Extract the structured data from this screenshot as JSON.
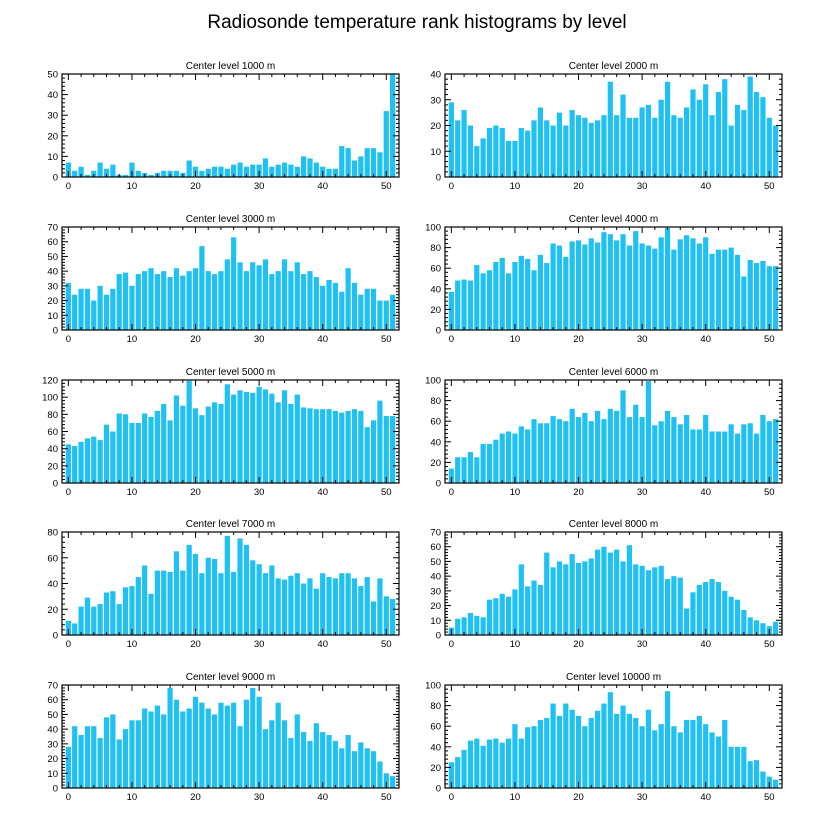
{
  "title": "Radiosonde temperature rank histograms by level",
  "colors": {
    "bar": "#1fc0f2",
    "axis": "#000000",
    "background": "#ffffff"
  },
  "chart_data": [
    {
      "type": "bar",
      "title": "Center level 1000 m",
      "xlim": [
        -1,
        52
      ],
      "ylim": [
        0,
        50
      ],
      "xticks": [
        0,
        10,
        20,
        30,
        40,
        50
      ],
      "yticks": [
        0,
        10,
        20,
        30,
        40,
        50
      ],
      "x_start": 0,
      "values": [
        7,
        3,
        5,
        1,
        3,
        7,
        4,
        6,
        1,
        1,
        7,
        3,
        2,
        1,
        2,
        3,
        3,
        3,
        2,
        8,
        5,
        3,
        4,
        5,
        5,
        4,
        6,
        7,
        5,
        6,
        6,
        9,
        5,
        6,
        7,
        6,
        5,
        10,
        9,
        7,
        5,
        4,
        4,
        15,
        14,
        8,
        10,
        14,
        14,
        12,
        32,
        50
      ]
    },
    {
      "type": "bar",
      "title": "Center level 2000 m",
      "xlim": [
        -1,
        52
      ],
      "ylim": [
        0,
        40
      ],
      "xticks": [
        0,
        10,
        20,
        30,
        40,
        50
      ],
      "yticks": [
        0,
        10,
        20,
        30,
        40
      ],
      "x_start": 0,
      "values": [
        29,
        22,
        26,
        20,
        12,
        15,
        19,
        20,
        19,
        14,
        14,
        19,
        18,
        22,
        27,
        22,
        20,
        25,
        20,
        26,
        24,
        23,
        21,
        22,
        24,
        37,
        24,
        32,
        23,
        23,
        27,
        28,
        23,
        30,
        37,
        24,
        23,
        27,
        34,
        30,
        36,
        24,
        33,
        38,
        20,
        28,
        26,
        39,
        33,
        31,
        23,
        20
      ]
    },
    {
      "type": "bar",
      "title": "Center level 3000 m",
      "xlim": [
        -1,
        52
      ],
      "ylim": [
        0,
        70
      ],
      "xticks": [
        0,
        10,
        20,
        30,
        40,
        50
      ],
      "yticks": [
        0,
        10,
        20,
        30,
        40,
        50,
        60,
        70
      ],
      "x_start": 0,
      "values": [
        32,
        24,
        28,
        28,
        20,
        30,
        24,
        28,
        38,
        39,
        30,
        38,
        40,
        42,
        38,
        40,
        36,
        42,
        37,
        40,
        42,
        57,
        40,
        38,
        40,
        48,
        63,
        46,
        40,
        46,
        44,
        48,
        38,
        40,
        48,
        40,
        46,
        38,
        40,
        36,
        30,
        34,
        32,
        26,
        42,
        32,
        24,
        28,
        28,
        20,
        20,
        24
      ]
    },
    {
      "type": "bar",
      "title": "Center level 4000 m",
      "xlim": [
        -1,
        52
      ],
      "ylim": [
        0,
        100
      ],
      "xticks": [
        0,
        10,
        20,
        30,
        40,
        50
      ],
      "yticks": [
        0,
        20,
        40,
        60,
        80,
        100
      ],
      "x_start": 0,
      "values": [
        37,
        48,
        49,
        48,
        63,
        55,
        58,
        66,
        70,
        55,
        66,
        72,
        69,
        58,
        73,
        65,
        84,
        82,
        71,
        86,
        87,
        83,
        89,
        85,
        95,
        93,
        87,
        93,
        82,
        96,
        84,
        82,
        79,
        90,
        99,
        78,
        88,
        92,
        89,
        84,
        90,
        74,
        78,
        78,
        80,
        73,
        52,
        68,
        65,
        67,
        62,
        62
      ]
    },
    {
      "type": "bar",
      "title": "Center level 5000 m",
      "xlim": [
        -1,
        52
      ],
      "ylim": [
        0,
        120
      ],
      "xticks": [
        0,
        10,
        20,
        30,
        40,
        50
      ],
      "yticks": [
        0,
        20,
        40,
        60,
        80,
        100,
        120
      ],
      "x_start": 0,
      "values": [
        45,
        43,
        48,
        52,
        54,
        50,
        68,
        60,
        81,
        80,
        70,
        70,
        81,
        77,
        84,
        92,
        73,
        102,
        90,
        119,
        87,
        79,
        89,
        94,
        92,
        115,
        103,
        108,
        106,
        105,
        112,
        109,
        104,
        94,
        108,
        92,
        103,
        88,
        87,
        86,
        86,
        86,
        84,
        82,
        84,
        86,
        84,
        65,
        73,
        96,
        78,
        78
      ]
    },
    {
      "type": "bar",
      "title": "Center level 6000 m",
      "xlim": [
        -1,
        52
      ],
      "ylim": [
        0,
        100
      ],
      "xticks": [
        0,
        10,
        20,
        30,
        40,
        50
      ],
      "yticks": [
        0,
        20,
        40,
        60,
        80,
        100
      ],
      "x_start": 0,
      "values": [
        14,
        25,
        25,
        30,
        25,
        38,
        38,
        42,
        48,
        50,
        48,
        55,
        52,
        62,
        58,
        58,
        65,
        62,
        60,
        72,
        64,
        68,
        60,
        70,
        62,
        72,
        70,
        90,
        64,
        76,
        64,
        99,
        56,
        60,
        70,
        64,
        57,
        66,
        52,
        52,
        66,
        50,
        50,
        50,
        57,
        48,
        57,
        58,
        48,
        66,
        60,
        62
      ]
    },
    {
      "type": "bar",
      "title": "Center level 7000 m",
      "xlim": [
        -1,
        52
      ],
      "ylim": [
        0,
        80
      ],
      "xticks": [
        0,
        10,
        20,
        30,
        40,
        50
      ],
      "yticks": [
        0,
        20,
        40,
        60,
        80
      ],
      "x_start": 0,
      "values": [
        11,
        9,
        22,
        29,
        22,
        24,
        33,
        34,
        24,
        37,
        38,
        45,
        54,
        32,
        50,
        50,
        49,
        65,
        50,
        70,
        63,
        48,
        60,
        59,
        48,
        77,
        49,
        75,
        70,
        58,
        55,
        48,
        54,
        44,
        43,
        46,
        48,
        40,
        44,
        36,
        48,
        45,
        44,
        48,
        48,
        44,
        38,
        45,
        26,
        44,
        30,
        28
      ]
    },
    {
      "type": "bar",
      "title": "Center level 8000 m",
      "xlim": [
        -1,
        52
      ],
      "ylim": [
        0,
        70
      ],
      "xticks": [
        0,
        10,
        20,
        30,
        40,
        50
      ],
      "yticks": [
        0,
        10,
        20,
        30,
        40,
        50,
        60,
        70
      ],
      "x_start": 0,
      "values": [
        5,
        11,
        12,
        15,
        13,
        12,
        24,
        25,
        28,
        26,
        31,
        48,
        33,
        37,
        34,
        56,
        46,
        50,
        48,
        55,
        49,
        50,
        52,
        58,
        60,
        56,
        58,
        50,
        61,
        48,
        47,
        44,
        46,
        47,
        38,
        40,
        39,
        18,
        29,
        34,
        36,
        38,
        36,
        30,
        26,
        24,
        17,
        12,
        10,
        8,
        6,
        9
      ]
    },
    {
      "type": "bar",
      "title": "Center level 9000 m",
      "xlim": [
        -1,
        52
      ],
      "ylim": [
        0,
        70
      ],
      "xticks": [
        0,
        10,
        20,
        30,
        40,
        50
      ],
      "yticks": [
        0,
        10,
        20,
        30,
        40,
        50,
        60,
        70
      ],
      "x_start": 0,
      "values": [
        28,
        42,
        36,
        42,
        42,
        34,
        48,
        50,
        33,
        40,
        46,
        46,
        54,
        52,
        56,
        50,
        68,
        60,
        52,
        54,
        62,
        58,
        54,
        50,
        58,
        56,
        58,
        42,
        60,
        68,
        62,
        40,
        46,
        58,
        46,
        34,
        50,
        38,
        32,
        44,
        38,
        36,
        32,
        27,
        36,
        25,
        31,
        27,
        25,
        18,
        10,
        8
      ]
    },
    {
      "type": "bar",
      "title": "Center level 10000 m",
      "xlim": [
        -1,
        52
      ],
      "ylim": [
        0,
        100
      ],
      "xticks": [
        0,
        10,
        20,
        30,
        40,
        50
      ],
      "yticks": [
        0,
        20,
        40,
        60,
        80,
        100
      ],
      "x_start": 0,
      "values": [
        25,
        30,
        37,
        46,
        48,
        41,
        47,
        48,
        44,
        48,
        62,
        48,
        59,
        60,
        66,
        68,
        82,
        70,
        82,
        76,
        70,
        60,
        68,
        75,
        82,
        93,
        72,
        80,
        72,
        68,
        60,
        76,
        56,
        62,
        94,
        60,
        54,
        66,
        66,
        70,
        62,
        54,
        50,
        66,
        40,
        40,
        40,
        26,
        27,
        16,
        11,
        8
      ]
    }
  ]
}
